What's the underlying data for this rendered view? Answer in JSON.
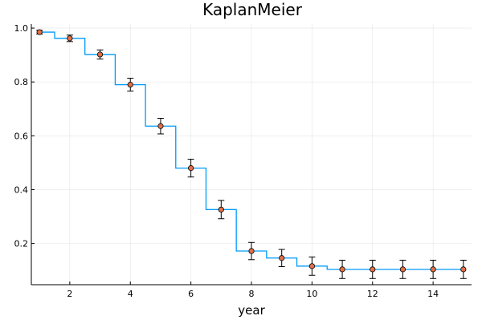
{
  "chart_data": {
    "type": "line",
    "title": "KaplanMeier",
    "xlabel": "year",
    "ylabel": "",
    "xlim": [
      0.73,
      15.27
    ],
    "ylim": [
      0.047,
      1.015
    ],
    "grid": true,
    "legend": "none",
    "xticks": [
      2,
      4,
      6,
      8,
      10,
      12,
      14
    ],
    "yticks": [
      0.2,
      0.4,
      0.6,
      0.8,
      1.0
    ],
    "xtick_labels": [
      "2",
      "4",
      "6",
      "8",
      "10",
      "12",
      "14"
    ],
    "ytick_labels": [
      "0.2",
      "0.4",
      "0.6",
      "0.8",
      "1.0"
    ],
    "series": [
      {
        "kind": "step",
        "color": "#009AFA",
        "x": [
          1,
          2,
          3,
          4,
          5,
          6,
          7,
          8,
          9,
          10,
          11,
          12,
          13,
          14,
          15
        ],
        "y": [
          0.985,
          0.962,
          0.902,
          0.79,
          0.636,
          0.48,
          0.326,
          0.172,
          0.146,
          0.116,
          0.104,
          0.104,
          0.104,
          0.104,
          0.104
        ]
      },
      {
        "kind": "scatter-errorbar",
        "color": "#E26F46",
        "x": [
          1,
          2,
          3,
          4,
          5,
          6,
          7,
          8,
          9,
          10,
          11,
          12,
          13,
          14,
          15
        ],
        "y": [
          0.985,
          0.962,
          0.902,
          0.79,
          0.636,
          0.48,
          0.326,
          0.172,
          0.146,
          0.116,
          0.104,
          0.104,
          0.104,
          0.104,
          0.104
        ],
        "err": [
          0.007,
          0.012,
          0.017,
          0.024,
          0.029,
          0.033,
          0.034,
          0.032,
          0.032,
          0.034,
          0.034,
          0.034,
          0.034,
          0.034,
          0.034
        ]
      }
    ]
  }
}
